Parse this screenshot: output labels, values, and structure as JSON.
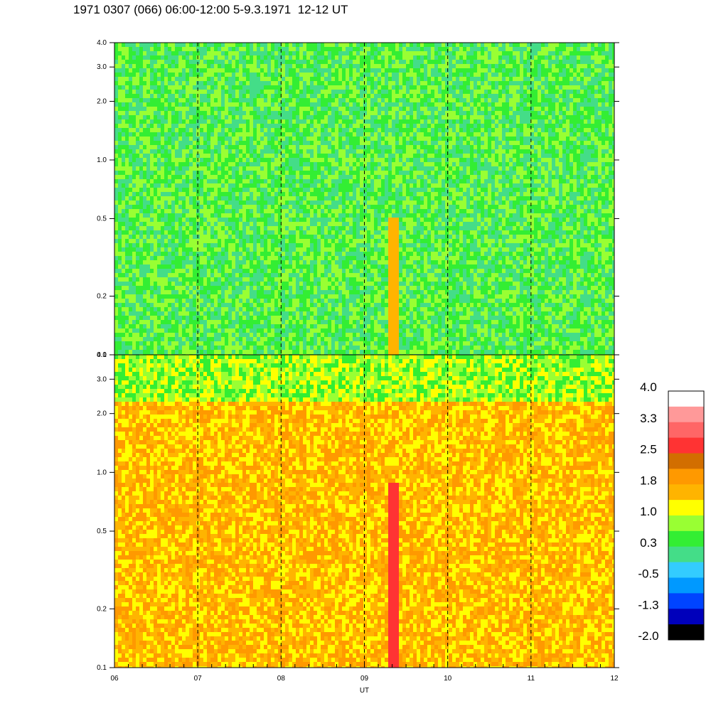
{
  "title": "1971 0307 (066) 06:00-12:00 5-9.3.1971  12-12 UT",
  "chart_data": {
    "type": "heatmap",
    "x_label": "UT",
    "x_range": [
      6,
      12
    ],
    "x_ticks": [
      "06",
      "07",
      "08",
      "09",
      "10",
      "11",
      "12"
    ],
    "dashed_hour_lines": [
      7,
      8,
      9,
      10,
      11
    ],
    "y_scale": "log",
    "y_range": [
      0.1,
      4.0
    ],
    "panels": [
      {
        "name": "upper",
        "y_ticks": [
          {
            "value": 0.1,
            "label": "0.1"
          },
          {
            "value": 0.2,
            "label": "0.2"
          },
          {
            "value": 0.5,
            "label": "0.5"
          },
          {
            "value": 1.0,
            "label": "1.0"
          },
          {
            "value": 2.0,
            "label": "2.0"
          },
          {
            "value": 3.0,
            "label": "3.0"
          },
          {
            "value": 4.0,
            "label": "4.0"
          }
        ],
        "dominant_levels": [
          0.3,
          1.0
        ],
        "bright_streak_ut": 9.33
      },
      {
        "name": "lower",
        "y_ticks": [
          {
            "value": 0.1,
            "label": "0.1"
          },
          {
            "value": 0.2,
            "label": "0.2"
          },
          {
            "value": 0.5,
            "label": "0.5"
          },
          {
            "value": 1.0,
            "label": "1.0"
          },
          {
            "value": 2.0,
            "label": "2.0"
          },
          {
            "value": 3.0,
            "label": "3.0"
          },
          {
            "value": 4.0,
            "label": "4.0"
          }
        ],
        "dominant_levels": [
          1.0,
          1.8
        ],
        "bright_streak_ut": 9.33
      }
    ],
    "colorbar": {
      "labels": [
        "4.0",
        "3.3",
        "2.5",
        "1.8",
        "1.0",
        "0.3",
        "-0.5",
        "-1.3",
        "-2.0"
      ],
      "colors": [
        "#ffffff",
        "#ff9999",
        "#ff6666",
        "#ff3333",
        "#d26e00",
        "#ff9900",
        "#ffb400",
        "#ffff00",
        "#99ff33",
        "#33ee33",
        "#44dd88",
        "#33ccff",
        "#0099ff",
        "#0044ff",
        "#0000bb",
        "#000000"
      ]
    }
  }
}
